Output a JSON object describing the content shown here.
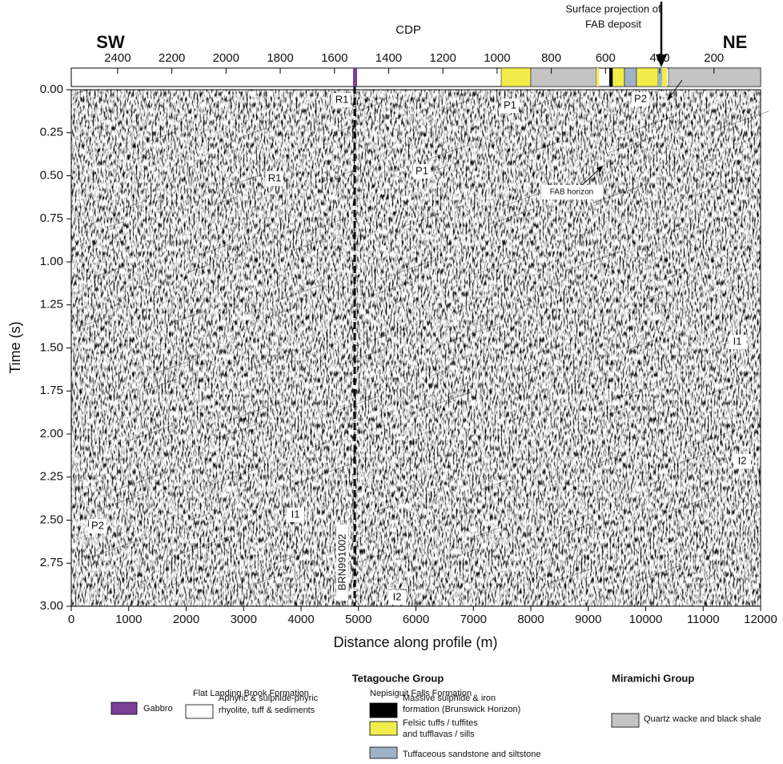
{
  "figure": {
    "top_labels": {
      "left": "SW",
      "right": "NE",
      "cdp_axis_title": "CDP",
      "surface_projection": [
        "Surface projection of",
        "FAB  deposit"
      ]
    },
    "cdp_axis": {
      "lim": [
        2571,
        28
      ],
      "ticks": [
        2400,
        2200,
        2000,
        1800,
        1600,
        1400,
        1200,
        1000,
        800,
        600,
        400,
        200
      ]
    },
    "x_axis": {
      "label": "Distance along profile (m)",
      "lim": [
        0,
        12000
      ],
      "ticks": [
        0,
        1000,
        2000,
        3000,
        4000,
        5000,
        6000,
        7000,
        8000,
        9000,
        10000,
        11000,
        12000
      ]
    },
    "y_axis": {
      "label": "Time (s)",
      "lim": [
        0,
        3
      ],
      "ticks": [
        {
          "value": 0,
          "label": "0.00"
        },
        {
          "value": 0.25,
          "label": "0.25"
        },
        {
          "value": 0.5,
          "label": "0.50"
        },
        {
          "value": 0.75,
          "label": "0.75"
        },
        {
          "value": 1,
          "label": "1.00"
        },
        {
          "value": 1.25,
          "label": "1.25"
        },
        {
          "value": 1.5,
          "label": "1.50"
        },
        {
          "value": 1.75,
          "label": "1.75"
        },
        {
          "value": 2,
          "label": "2.00"
        },
        {
          "value": 2.25,
          "label": "2.25"
        },
        {
          "value": 2.5,
          "label": "2.50"
        },
        {
          "value": 2.75,
          "label": "2.75"
        },
        {
          "value": 3,
          "label": "3.00"
        }
      ]
    },
    "annotations": [
      "R1",
      "R1",
      "P1",
      "P1",
      "P2",
      "FAB horizon",
      "I1",
      "I2",
      "P2",
      "I1",
      "I2"
    ],
    "line_label": "BRN991002",
    "legend": {
      "groups": [
        "Tetagouche Group",
        "Miramichi Group"
      ],
      "formations": [
        "Flat Landing Brook Formation",
        "Nepisiguit Falls Formation"
      ],
      "entries": [
        {
          "color": "#7b3f98",
          "text": [
            "Gabbro"
          ]
        },
        {
          "color": "#ffffff",
          "text": [
            "Aphyric & sulphide-phyric",
            "rhyolite, tuff & sediments"
          ]
        },
        {
          "color": "#000000",
          "text": [
            "Massive sulphide & iron",
            "formation (Brunswick Horizon)"
          ]
        },
        {
          "color": "#f2ed4a",
          "text": [
            "Felsic tuffs / tuffites",
            " and tufflavas / sills"
          ]
        },
        {
          "color": "#9fb3c8",
          "text": [
            "Tuffaceous sandstone and siltstone"
          ]
        },
        {
          "color": "#c4c4c4",
          "text": [
            "Quartz wacke and black shale"
          ]
        }
      ]
    }
  }
}
